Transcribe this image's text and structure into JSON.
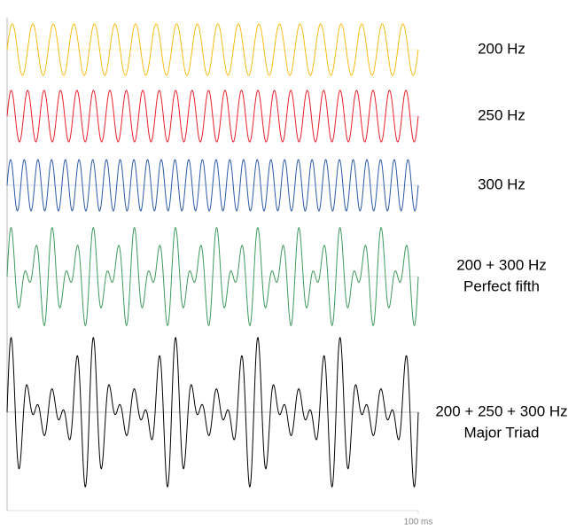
{
  "chart_data": {
    "type": "waveform",
    "xlim": [
      0,
      100
    ],
    "xticks": [
      {
        "value": 100,
        "label": "100 ms"
      }
    ],
    "series": [
      {
        "name": "200 Hz",
        "frequencies": [
          200
        ],
        "color": "#f9bc15"
      },
      {
        "name": "250 Hz",
        "frequencies": [
          250
        ],
        "color": "#e8202a"
      },
      {
        "name": "300 Hz",
        "frequencies": [
          300
        ],
        "color": "#2b5ba8"
      },
      {
        "name": "200 + 300 Hz",
        "note": "Perfect fifth",
        "frequencies": [
          200,
          300
        ],
        "color": "#3d9a5c"
      },
      {
        "name": "200 + 250 + 300 Hz",
        "note": "Major Triad",
        "frequencies": [
          200,
          250,
          300
        ],
        "color": "#000000"
      }
    ]
  }
}
